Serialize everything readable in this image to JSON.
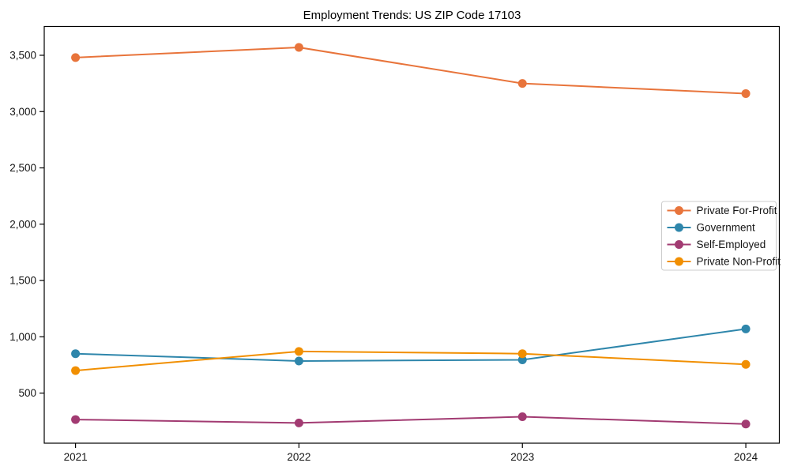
{
  "window": {
    "background_color": "#ffffff",
    "text_color": "#141414",
    "spine_color": "#000000",
    "legend_border_color": "#cccccc",
    "legend_background": "#ffffff"
  },
  "chart_data": {
    "type": "line",
    "title": "Employment Trends: US ZIP Code 17103",
    "xlabel": "",
    "ylabel": "",
    "x": [
      2021,
      2022,
      2023,
      2024
    ],
    "x_tick_labels": [
      "2021",
      "2022",
      "2023",
      "2024"
    ],
    "y_ticks": [
      500,
      1000,
      1500,
      2000,
      2500,
      3000,
      3500
    ],
    "y_tick_labels": [
      "500",
      "1,000",
      "1,500",
      "2,000",
      "2,500",
      "3,000",
      "3,500"
    ],
    "xlim": [
      2020.86,
      2024.15
    ],
    "ylim": [
      55,
      3756
    ],
    "grid": false,
    "marker": "o",
    "legend_position": "center right",
    "series": [
      {
        "name": "Private For-Profit",
        "color": "#e8743b",
        "values": [
          3480,
          3570,
          3250,
          3160
        ]
      },
      {
        "name": "Government",
        "color": "#2e86ab",
        "values": [
          850,
          785,
          795,
          1070
        ]
      },
      {
        "name": "Self-Employed",
        "color": "#a23b72",
        "values": [
          265,
          235,
          290,
          225
        ]
      },
      {
        "name": "Private Non-Profit",
        "color": "#f18f01",
        "values": [
          700,
          870,
          850,
          755
        ]
      }
    ]
  }
}
